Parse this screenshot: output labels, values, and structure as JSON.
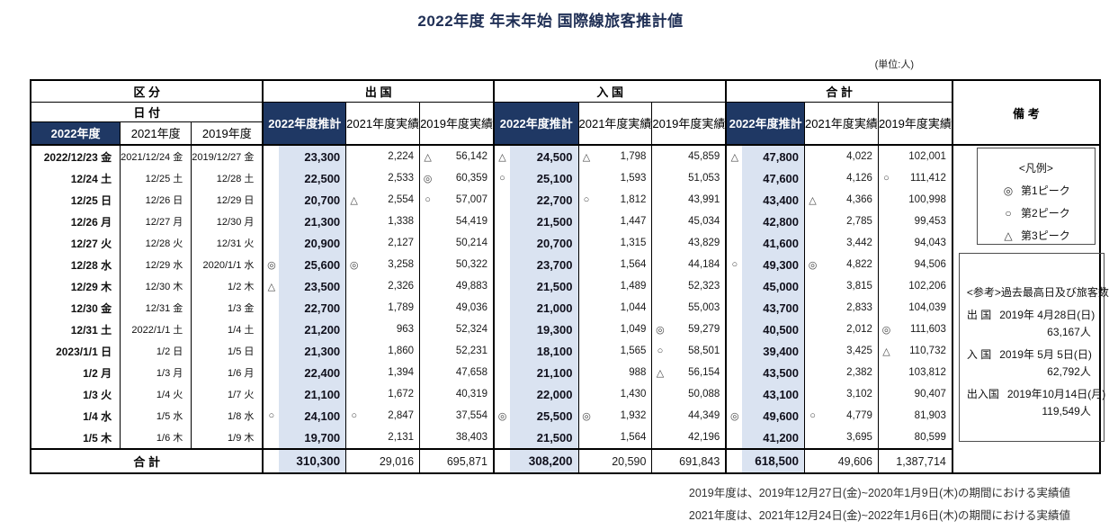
{
  "title": "2022年度 年末年始 国際線旅客推計値",
  "unit_note": "(単位:人)",
  "colors": {
    "header_navy": "#1f3864",
    "estimate_column_bg": "#dae3f1",
    "border_black": "#000000"
  },
  "table": {
    "kubun_label": "区 分",
    "hizuke_label": "日 付",
    "group_headers": [
      "出 国",
      "入 国",
      "合 計"
    ],
    "remarks_header": "備 考",
    "date_year_headers": [
      "2022年度",
      "2021年度",
      "2019年度"
    ],
    "value_col_headers": [
      "2022年度推計",
      "2021年度実績",
      "2019年度実績"
    ],
    "total_label": "合 計",
    "rows": [
      {
        "dates": [
          "2022/12/23 金",
          "2021/12/24 金",
          "2019/12/27 金"
        ],
        "dep": [
          {
            "m": "",
            "v": "23,300"
          },
          {
            "m": "",
            "v": "2,224"
          },
          {
            "m": "△",
            "v": "56,142"
          }
        ],
        "arr": [
          {
            "m": "△",
            "v": "24,500"
          },
          {
            "m": "△",
            "v": "1,798"
          },
          {
            "m": "",
            "v": "45,859"
          }
        ],
        "tot": [
          {
            "m": "△",
            "v": "47,800"
          },
          {
            "m": "",
            "v": "4,022"
          },
          {
            "m": "",
            "v": "102,001"
          }
        ]
      },
      {
        "dates": [
          "12/24 土",
          "12/25 土",
          "12/28 土"
        ],
        "dep": [
          {
            "m": "",
            "v": "22,500"
          },
          {
            "m": "",
            "v": "2,533"
          },
          {
            "m": "◎",
            "v": "60,359"
          }
        ],
        "arr": [
          {
            "m": "○",
            "v": "25,100"
          },
          {
            "m": "",
            "v": "1,593"
          },
          {
            "m": "",
            "v": "51,053"
          }
        ],
        "tot": [
          {
            "m": "",
            "v": "47,600"
          },
          {
            "m": "",
            "v": "4,126"
          },
          {
            "m": "○",
            "v": "111,412"
          }
        ]
      },
      {
        "dates": [
          "12/25 日",
          "12/26 日",
          "12/29 日"
        ],
        "dep": [
          {
            "m": "",
            "v": "20,700"
          },
          {
            "m": "△",
            "v": "2,554"
          },
          {
            "m": "○",
            "v": "57,007"
          }
        ],
        "arr": [
          {
            "m": "",
            "v": "22,700"
          },
          {
            "m": "○",
            "v": "1,812"
          },
          {
            "m": "",
            "v": "43,991"
          }
        ],
        "tot": [
          {
            "m": "",
            "v": "43,400"
          },
          {
            "m": "△",
            "v": "4,366"
          },
          {
            "m": "",
            "v": "100,998"
          }
        ]
      },
      {
        "dates": [
          "12/26 月",
          "12/27 月",
          "12/30 月"
        ],
        "dep": [
          {
            "m": "",
            "v": "21,300"
          },
          {
            "m": "",
            "v": "1,338"
          },
          {
            "m": "",
            "v": "54,419"
          }
        ],
        "arr": [
          {
            "m": "",
            "v": "21,500"
          },
          {
            "m": "",
            "v": "1,447"
          },
          {
            "m": "",
            "v": "45,034"
          }
        ],
        "tot": [
          {
            "m": "",
            "v": "42,800"
          },
          {
            "m": "",
            "v": "2,785"
          },
          {
            "m": "",
            "v": "99,453"
          }
        ]
      },
      {
        "dates": [
          "12/27 火",
          "12/28 火",
          "12/31 火"
        ],
        "dep": [
          {
            "m": "",
            "v": "20,900"
          },
          {
            "m": "",
            "v": "2,127"
          },
          {
            "m": "",
            "v": "50,214"
          }
        ],
        "arr": [
          {
            "m": "",
            "v": "20,700"
          },
          {
            "m": "",
            "v": "1,315"
          },
          {
            "m": "",
            "v": "43,829"
          }
        ],
        "tot": [
          {
            "m": "",
            "v": "41,600"
          },
          {
            "m": "",
            "v": "3,442"
          },
          {
            "m": "",
            "v": "94,043"
          }
        ]
      },
      {
        "dates": [
          "12/28 水",
          "12/29 水",
          "2020/1/1 水"
        ],
        "dep": [
          {
            "m": "◎",
            "v": "25,600"
          },
          {
            "m": "◎",
            "v": "3,258"
          },
          {
            "m": "",
            "v": "50,322"
          }
        ],
        "arr": [
          {
            "m": "",
            "v": "23,700"
          },
          {
            "m": "",
            "v": "1,564"
          },
          {
            "m": "",
            "v": "44,184"
          }
        ],
        "tot": [
          {
            "m": "○",
            "v": "49,300"
          },
          {
            "m": "◎",
            "v": "4,822"
          },
          {
            "m": "",
            "v": "94,506"
          }
        ]
      },
      {
        "dates": [
          "12/29 木",
          "12/30 木",
          "1/2 木"
        ],
        "dep": [
          {
            "m": "△",
            "v": "23,500"
          },
          {
            "m": "",
            "v": "2,326"
          },
          {
            "m": "",
            "v": "49,883"
          }
        ],
        "arr": [
          {
            "m": "",
            "v": "21,500"
          },
          {
            "m": "",
            "v": "1,489"
          },
          {
            "m": "",
            "v": "52,323"
          }
        ],
        "tot": [
          {
            "m": "",
            "v": "45,000"
          },
          {
            "m": "",
            "v": "3,815"
          },
          {
            "m": "",
            "v": "102,206"
          }
        ]
      },
      {
        "dates": [
          "12/30 金",
          "12/31 金",
          "1/3 金"
        ],
        "dep": [
          {
            "m": "",
            "v": "22,700"
          },
          {
            "m": "",
            "v": "1,789"
          },
          {
            "m": "",
            "v": "49,036"
          }
        ],
        "arr": [
          {
            "m": "",
            "v": "21,000"
          },
          {
            "m": "",
            "v": "1,044"
          },
          {
            "m": "",
            "v": "55,003"
          }
        ],
        "tot": [
          {
            "m": "",
            "v": "43,700"
          },
          {
            "m": "",
            "v": "2,833"
          },
          {
            "m": "",
            "v": "104,039"
          }
        ]
      },
      {
        "dates": [
          "12/31 土",
          "2022/1/1 土",
          "1/4 土"
        ],
        "dep": [
          {
            "m": "",
            "v": "21,200"
          },
          {
            "m": "",
            "v": "963"
          },
          {
            "m": "",
            "v": "52,324"
          }
        ],
        "arr": [
          {
            "m": "",
            "v": "19,300"
          },
          {
            "m": "",
            "v": "1,049"
          },
          {
            "m": "◎",
            "v": "59,279"
          }
        ],
        "tot": [
          {
            "m": "",
            "v": "40,500"
          },
          {
            "m": "",
            "v": "2,012"
          },
          {
            "m": "◎",
            "v": "111,603"
          }
        ]
      },
      {
        "dates": [
          "2023/1/1 日",
          "1/2 日",
          "1/5 日"
        ],
        "dep": [
          {
            "m": "",
            "v": "21,300"
          },
          {
            "m": "",
            "v": "1,860"
          },
          {
            "m": "",
            "v": "52,231"
          }
        ],
        "arr": [
          {
            "m": "",
            "v": "18,100"
          },
          {
            "m": "",
            "v": "1,565"
          },
          {
            "m": "○",
            "v": "58,501"
          }
        ],
        "tot": [
          {
            "m": "",
            "v": "39,400"
          },
          {
            "m": "",
            "v": "3,425"
          },
          {
            "m": "△",
            "v": "110,732"
          }
        ]
      },
      {
        "dates": [
          "1/2 月",
          "1/3 月",
          "1/6 月"
        ],
        "dep": [
          {
            "m": "",
            "v": "22,400"
          },
          {
            "m": "",
            "v": "1,394"
          },
          {
            "m": "",
            "v": "47,658"
          }
        ],
        "arr": [
          {
            "m": "",
            "v": "21,100"
          },
          {
            "m": "",
            "v": "988"
          },
          {
            "m": "△",
            "v": "56,154"
          }
        ],
        "tot": [
          {
            "m": "",
            "v": "43,500"
          },
          {
            "m": "",
            "v": "2,382"
          },
          {
            "m": "",
            "v": "103,812"
          }
        ]
      },
      {
        "dates": [
          "1/3 火",
          "1/4 火",
          "1/7 火"
        ],
        "dep": [
          {
            "m": "",
            "v": "21,100"
          },
          {
            "m": "",
            "v": "1,672"
          },
          {
            "m": "",
            "v": "40,319"
          }
        ],
        "arr": [
          {
            "m": "",
            "v": "22,000"
          },
          {
            "m": "",
            "v": "1,430"
          },
          {
            "m": "",
            "v": "50,088"
          }
        ],
        "tot": [
          {
            "m": "",
            "v": "43,100"
          },
          {
            "m": "",
            "v": "3,102"
          },
          {
            "m": "",
            "v": "90,407"
          }
        ]
      },
      {
        "dates": [
          "1/4 水",
          "1/5 水",
          "1/8 水"
        ],
        "dep": [
          {
            "m": "○",
            "v": "24,100"
          },
          {
            "m": "○",
            "v": "2,847"
          },
          {
            "m": "",
            "v": "37,554"
          }
        ],
        "arr": [
          {
            "m": "◎",
            "v": "25,500"
          },
          {
            "m": "◎",
            "v": "1,932"
          },
          {
            "m": "",
            "v": "44,349"
          }
        ],
        "tot": [
          {
            "m": "◎",
            "v": "49,600"
          },
          {
            "m": "○",
            "v": "4,779"
          },
          {
            "m": "",
            "v": "81,903"
          }
        ]
      },
      {
        "dates": [
          "1/5 木",
          "1/6 木",
          "1/9 木"
        ],
        "dep": [
          {
            "m": "",
            "v": "19,700"
          },
          {
            "m": "",
            "v": "2,131"
          },
          {
            "m": "",
            "v": "38,403"
          }
        ],
        "arr": [
          {
            "m": "",
            "v": "21,500"
          },
          {
            "m": "",
            "v": "1,564"
          },
          {
            "m": "",
            "v": "42,196"
          }
        ],
        "tot": [
          {
            "m": "",
            "v": "41,200"
          },
          {
            "m": "",
            "v": "3,695"
          },
          {
            "m": "",
            "v": "80,599"
          }
        ]
      }
    ],
    "totals": {
      "dep": [
        "310,300",
        "29,016",
        "695,871"
      ],
      "arr": [
        "308,200",
        "20,590",
        "691,843"
      ],
      "tot": [
        "618,500",
        "49,606",
        "1,387,714"
      ]
    }
  },
  "legend": {
    "title": "<凡例>",
    "items": [
      {
        "symbol": "◎",
        "label": "第1ピーク"
      },
      {
        "symbol": "○",
        "label": "第2ピーク"
      },
      {
        "symbol": "△",
        "label": "第3ピーク"
      }
    ]
  },
  "reference": {
    "title": "<参考>過去最高日及び旅客数",
    "items": [
      {
        "label": "出 国",
        "date": "2019年 4月28日(日)",
        "value": "63,167人"
      },
      {
        "label": "入 国",
        "date": "2019年 5月 5日(日)",
        "value": "62,792人"
      },
      {
        "label": "出入国",
        "date": "2019年10月14日(月)",
        "value": "119,549人"
      }
    ]
  },
  "footnotes": [
    "2019年度は、2019年12月27日(金)~2020年1月9日(木)の期間における実績値",
    "2021年度は、2021年12月24日(金)~2022年1月6日(木)の期間における実績値"
  ]
}
